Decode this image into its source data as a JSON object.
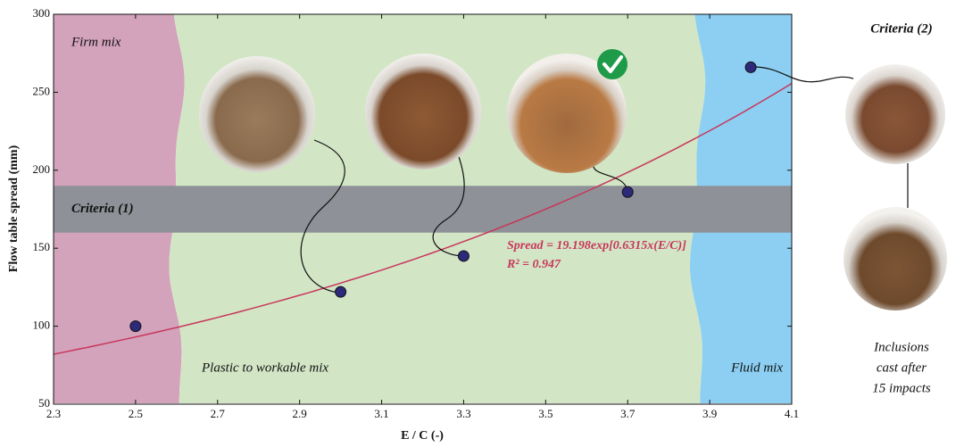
{
  "chart_data": {
    "type": "scatter",
    "xlabel": "E / C (-)",
    "ylabel": "Flow table spread (mm)",
    "xlim": [
      2.3,
      4.1
    ],
    "xticks": [
      2.3,
      2.5,
      2.7,
      2.9,
      3.1,
      3.3,
      3.5,
      3.7,
      3.9,
      4.1
    ],
    "ylim": [
      50,
      300
    ],
    "yticks": [
      50,
      100,
      150,
      200,
      250,
      300
    ],
    "x": [
      2.5,
      3.0,
      3.3,
      3.7,
      4.0
    ],
    "values": [
      100,
      122,
      145,
      186,
      266
    ],
    "color": "#2e2a7a",
    "regions": [
      {
        "name": "Firm mix",
        "from": 2.3,
        "to": 2.6,
        "color": "#d3a2bb"
      },
      {
        "name": "Plastic to workable mix",
        "from": 2.6,
        "to": 3.87,
        "color": "#d2e6c6"
      },
      {
        "name": "Fluid mix",
        "from": 3.87,
        "to": 4.1,
        "color": "#8ccff2"
      }
    ],
    "band": {
      "label": "Criteria (1)",
      "from": 160,
      "to": 190,
      "color": "#8e9197"
    },
    "fit": {
      "equation": "Spread = 19.198exp[0.6315x(E/C)]",
      "r2_label": "R² = 0.947",
      "a": 19.198,
      "b": 0.6315,
      "color": "#c8365a"
    },
    "side": {
      "title": "Criteria (2)",
      "caption": [
        "Inclusions",
        "cast after",
        "15 impacts"
      ]
    }
  }
}
